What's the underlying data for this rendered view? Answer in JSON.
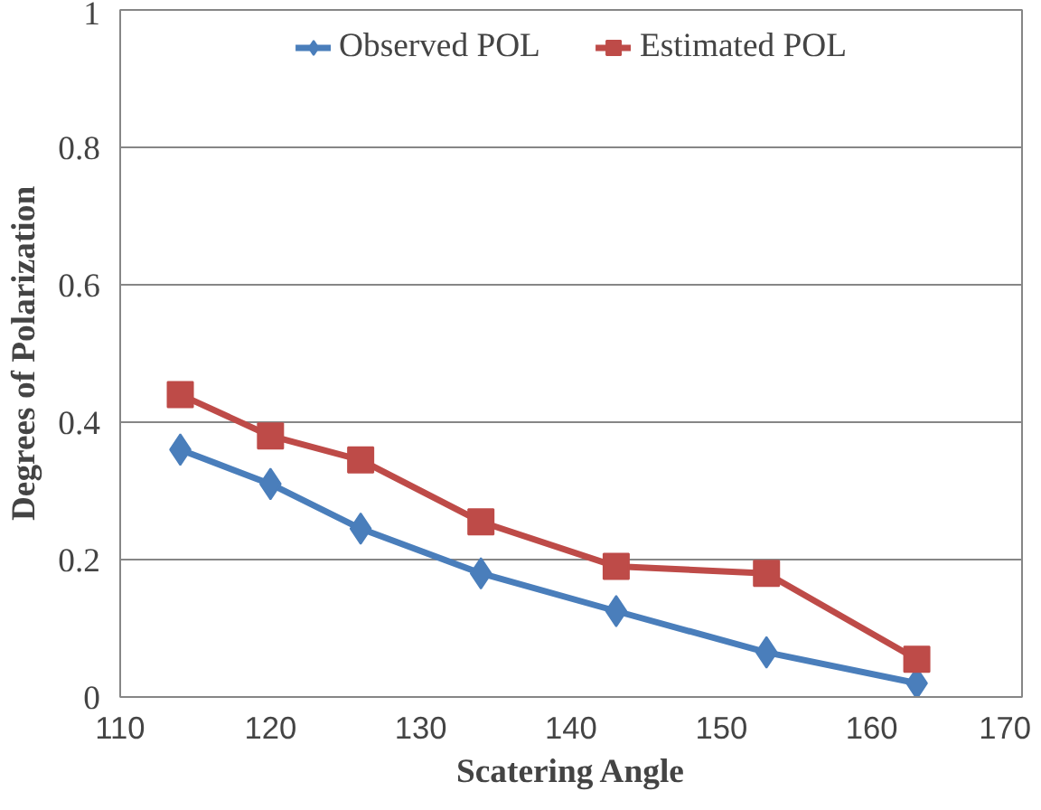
{
  "chart_data": {
    "type": "line",
    "xlabel": "Scatering Angle",
    "ylabel": "Degrees of Polarization",
    "x": [
      114,
      120,
      126,
      134,
      143,
      153,
      163
    ],
    "series": [
      {
        "name": "Observed POL",
        "color": "#4a7ebb",
        "marker": "diamond",
        "values": [
          0.36,
          0.31,
          0.245,
          0.18,
          0.125,
          0.065,
          0.02
        ]
      },
      {
        "name": "Estimated POL",
        "color": "#be4b48",
        "marker": "square",
        "values": [
          0.44,
          0.38,
          0.345,
          0.255,
          0.19,
          0.18,
          0.055
        ]
      }
    ],
    "xlim": [
      110,
      170
    ],
    "xticks": [
      110,
      120,
      130,
      140,
      150,
      160,
      170
    ],
    "ylim": [
      0,
      1
    ],
    "yticks": [
      0,
      0.2,
      0.4,
      0.6,
      0.8,
      1
    ],
    "grid": "y",
    "legend": "top",
    "line_style": "solid"
  }
}
